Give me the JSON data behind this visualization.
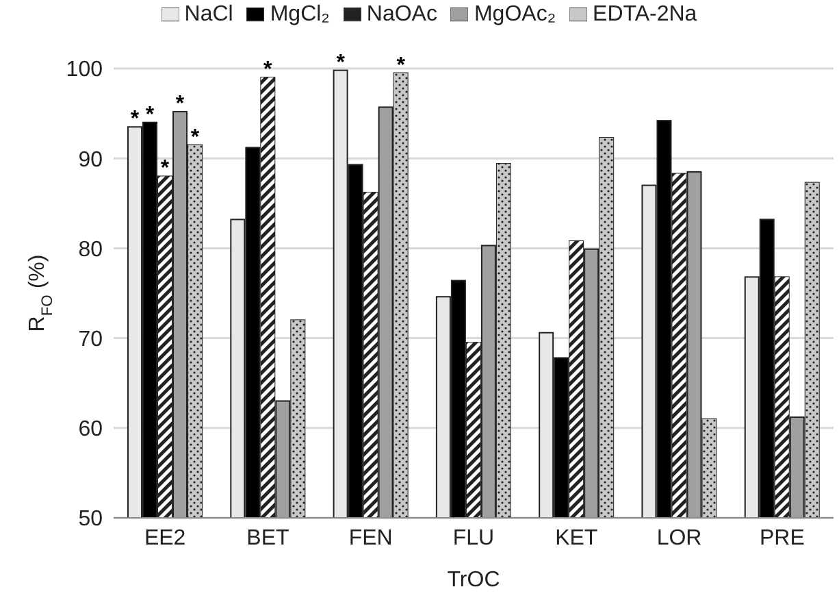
{
  "chart_data": {
    "type": "bar",
    "xlabel": "TrOC",
    "ylabel": "R$_{FO}$ (%)",
    "categories": [
      "EE2",
      "BET",
      "FEN",
      "FLU",
      "KET",
      "LOR",
      "PRE"
    ],
    "series": [
      {
        "name": "NaCl",
        "color": "#e8e8e8",
        "values": [
          93.5,
          83.2,
          99.8,
          74.6,
          70.6,
          87,
          76.8
        ],
        "value_labels": [
          "*",
          null,
          "*",
          null,
          null,
          null,
          null
        ]
      },
      {
        "name": "MgCl₂",
        "color": "#000000",
        "values": [
          94,
          91.2,
          89.3,
          76.4,
          67.8,
          94.2,
          83.2
        ],
        "value_labels": [
          "*",
          null,
          null,
          null,
          null,
          null,
          null
        ]
      },
      {
        "name": "NaOAc",
        "color": "#222222",
        "values": [
          88,
          99,
          86.2,
          69.5,
          80.8,
          88.3,
          76.8
        ],
        "value_labels": [
          "*",
          "*",
          null,
          null,
          null,
          null,
          null
        ]
      },
      {
        "name": "MgOAc₂",
        "color": "#a0a0a0",
        "values": [
          95.2,
          63,
          95.7,
          80.3,
          79.9,
          88.5,
          61.2
        ],
        "value_labels": [
          "*",
          null,
          null,
          null,
          null,
          null,
          null
        ]
      },
      {
        "name": "EDTA-2Na",
        "color": "#c8c8c8",
        "values": [
          91.5,
          72,
          99.5,
          89.4,
          92.3,
          61,
          87.3
        ],
        "value_labels": [
          "*",
          null,
          "*",
          null,
          null,
          null,
          null
        ]
      }
    ],
    "ylim": [
      50,
      100
    ],
    "yticks": [
      50,
      60,
      70,
      80,
      90,
      100
    ],
    "grid": "y",
    "legend": "top"
  }
}
